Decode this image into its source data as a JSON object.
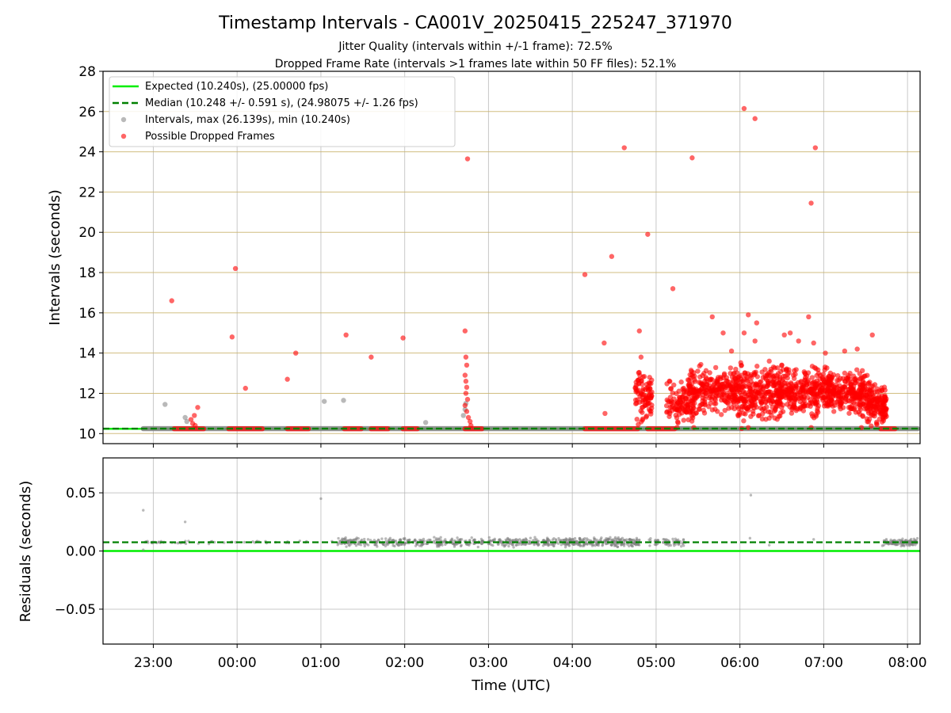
{
  "chart_data": [
    {
      "type": "scatter",
      "title": "Timestamp Intervals - CA001V_20250415_225247_371970",
      "subtitle_lines": [
        "Jitter Quality (intervals within +/-1 frame): 72.5%",
        "Dropped Frame Rate (intervals >1 frames late within 50 FF files): 52.1%"
      ],
      "xlabel": "",
      "ylabel": "Intervals (seconds)",
      "x_unit": "UTC hours (2025-04-15 22:00 = 22)",
      "xlim": [
        22.4,
        32.15
      ],
      "ylim": [
        9.5,
        28
      ],
      "yticks": [
        "10",
        "12",
        "14",
        "16",
        "18",
        "20",
        "22",
        "24",
        "26",
        "28"
      ],
      "grid": true,
      "legend_position": "upper-left",
      "legend": [
        "Expected (10.240s), (25.00000 fps)",
        "Median (10.248 +/- 0.591 s), (24.98075 +/- 1.26 fps)",
        "Intervals, max (26.139s), min (10.240s)",
        "Possible Dropped Frames"
      ],
      "lines": {
        "expected": 10.24,
        "median": 10.248
      },
      "series": [
        {
          "name": "Intervals, max (26.139s), min (10.240s)",
          "color": "#808080",
          "points": [
            [
              23.14,
              11.45
            ],
            [
              23.38,
              10.8
            ],
            [
              23.4,
              10.6
            ],
            [
              25.04,
              11.6
            ],
            [
              25.27,
              11.65
            ],
            [
              26.25,
              10.55
            ],
            [
              26.7,
              10.9
            ],
            [
              26.72,
              11.2
            ],
            [
              26.73,
              11.5
            ]
          ],
          "baseline_band": [
            22.88,
            32.12,
            10.245
          ]
        },
        {
          "name": "Possible Dropped Frames",
          "color": "#ff0000",
          "points": [
            [
              23.22,
              16.6
            ],
            [
              23.45,
              10.7
            ],
            [
              23.47,
              10.5
            ],
            [
              23.49,
              10.9
            ],
            [
              23.5,
              10.4
            ],
            [
              23.53,
              11.3
            ],
            [
              23.94,
              14.8
            ],
            [
              23.98,
              18.2
            ],
            [
              24.1,
              12.25
            ],
            [
              24.6,
              12.7
            ],
            [
              24.7,
              14.0
            ],
            [
              25.3,
              14.9
            ],
            [
              25.6,
              13.8
            ],
            [
              25.98,
              14.75
            ],
            [
              26.75,
              23.65
            ],
            [
              26.72,
              15.1
            ],
            [
              26.73,
              13.8
            ],
            [
              26.74,
              13.4
            ],
            [
              26.72,
              12.9
            ],
            [
              26.73,
              12.6
            ],
            [
              26.74,
              12.3
            ],
            [
              26.73,
              12.0
            ],
            [
              26.75,
              11.7
            ],
            [
              26.72,
              11.4
            ],
            [
              26.74,
              11.1
            ],
            [
              26.76,
              10.8
            ],
            [
              26.78,
              10.6
            ],
            [
              26.79,
              10.4
            ],
            [
              28.15,
              17.9
            ],
            [
              28.38,
              14.5
            ],
            [
              28.39,
              11.0
            ],
            [
              28.47,
              18.8
            ],
            [
              28.62,
              24.2
            ],
            [
              28.8,
              15.1
            ],
            [
              28.82,
              13.8
            ],
            [
              28.9,
              19.9
            ],
            [
              29.2,
              17.2
            ],
            [
              29.43,
              23.7
            ],
            [
              30.05,
              26.15
            ],
            [
              30.18,
              25.65
            ],
            [
              30.85,
              21.45
            ],
            [
              30.9,
              24.2
            ],
            [
              29.25,
              10.3
            ],
            [
              29.45,
              10.3
            ],
            [
              30.02,
              10.25
            ],
            [
              30.1,
              10.3
            ],
            [
              30.85,
              10.3
            ],
            [
              31.45,
              10.3
            ],
            [
              29.67,
              15.8
            ],
            [
              29.8,
              15.0
            ],
            [
              29.9,
              14.1
            ],
            [
              30.05,
              15.0
            ],
            [
              30.1,
              15.9
            ],
            [
              30.18,
              14.6
            ],
            [
              30.2,
              15.5
            ],
            [
              30.35,
              13.6
            ],
            [
              30.53,
              14.9
            ],
            [
              30.6,
              15.0
            ],
            [
              30.7,
              14.6
            ],
            [
              30.82,
              15.8
            ],
            [
              30.88,
              14.5
            ],
            [
              31.02,
              14.0
            ],
            [
              31.25,
              14.1
            ],
            [
              31.4,
              14.2
            ],
            [
              31.58,
              14.9
            ]
          ],
          "bands": [
            {
              "x0": 23.25,
              "x1": 23.6,
              "y": 10.24
            },
            {
              "x0": 23.9,
              "x1": 24.3,
              "y": 10.24
            },
            {
              "x0": 24.6,
              "x1": 24.85,
              "y": 10.24
            },
            {
              "x0": 25.28,
              "x1": 25.48,
              "y": 10.24
            },
            {
              "x0": 25.6,
              "x1": 25.8,
              "y": 10.24
            },
            {
              "x0": 25.98,
              "x1": 26.15,
              "y": 10.24
            },
            {
              "x0": 26.72,
              "x1": 26.92,
              "y": 10.24
            },
            {
              "x0": 28.15,
              "x1": 28.78,
              "y": 10.24
            },
            {
              "x0": 28.9,
              "x1": 29.22,
              "y": 10.24
            },
            {
              "x0": 31.68,
              "x1": 31.85,
              "y": 10.24
            }
          ],
          "clusters": [
            {
              "x0": 28.75,
              "x1": 28.95,
              "y0": 10.4,
              "y1": 13.4,
              "n": 90
            },
            {
              "x0": 29.12,
              "x1": 29.45,
              "y0": 10.4,
              "y1": 12.8,
              "n": 110
            },
            {
              "x0": 29.38,
              "x1": 29.95,
              "y0": 10.9,
              "y1": 13.5,
              "n": 230
            },
            {
              "x0": 29.9,
              "x1": 30.5,
              "y0": 10.5,
              "y1": 13.6,
              "n": 300
            },
            {
              "x0": 30.45,
              "x1": 31.1,
              "y0": 10.7,
              "y1": 13.5,
              "n": 320
            },
            {
              "x0": 31.05,
              "x1": 31.55,
              "y0": 10.8,
              "y1": 13.2,
              "n": 240
            },
            {
              "x0": 31.5,
              "x1": 31.75,
              "y0": 10.3,
              "y1": 12.5,
              "n": 140
            }
          ]
        }
      ]
    },
    {
      "type": "scatter",
      "title": "",
      "xlabel": "Time (UTC)",
      "ylabel": "Residuals (seconds)",
      "xlim": [
        22.4,
        32.15
      ],
      "ylim": [
        -0.08,
        0.08
      ],
      "yticks": [
        "−0.05",
        "0.00",
        "0.05"
      ],
      "xticks": [
        "23:00",
        "00:00",
        "01:00",
        "02:00",
        "03:00",
        "04:00",
        "05:00",
        "06:00",
        "07:00",
        "08:00"
      ],
      "grid": true,
      "lines": {
        "expected": 0.0,
        "median": 0.0075
      },
      "series": [
        {
          "name": "",
          "color": "#808080",
          "points": [
            [
              22.88,
              0.035
            ],
            [
              23.38,
              0.025
            ],
            [
              25.0,
              0.045
            ],
            [
              30.13,
              0.048
            ],
            [
              22.88,
              0.001
            ],
            [
              30.12,
              0.011
            ],
            [
              30.35,
              0.005
            ],
            [
              30.88,
              0.01
            ],
            [
              29.0,
              0.008
            ],
            [
              29.3,
              0.004
            ]
          ],
          "clusters": [
            {
              "x0": 22.88,
              "x1": 23.55,
              "y0": 0.006,
              "y1": 0.009,
              "n": 30
            },
            {
              "x0": 23.55,
              "x1": 25.2,
              "y0": 0.006,
              "y1": 0.009,
              "n": 25
            },
            {
              "x0": 25.2,
              "x1": 27.6,
              "y0": 0.003,
              "y1": 0.012,
              "n": 420
            },
            {
              "x0": 27.65,
              "x1": 28.8,
              "y0": 0.003,
              "y1": 0.012,
              "n": 300
            },
            {
              "x0": 28.9,
              "x1": 29.35,
              "y0": 0.004,
              "y1": 0.011,
              "n": 60
            },
            {
              "x0": 31.7,
              "x1": 32.12,
              "y0": 0.004,
              "y1": 0.011,
              "n": 110
            }
          ]
        }
      ]
    }
  ]
}
